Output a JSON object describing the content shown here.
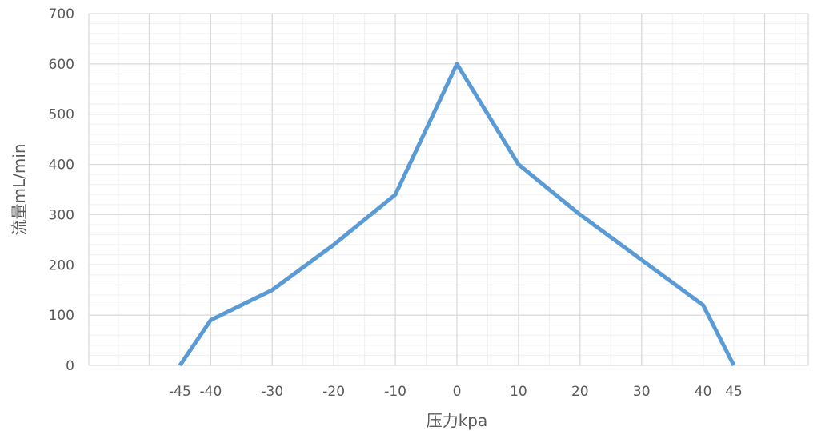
{
  "chart_data": {
    "type": "line",
    "title": "",
    "xlabel": "压力kpa",
    "ylabel": "流量mL/min",
    "x_ticks": [
      "-45",
      "-40",
      "-30",
      "-20",
      "-10",
      "0",
      "10",
      "20",
      "30",
      "40",
      "45"
    ],
    "y_ticks": [
      "0",
      "100",
      "200",
      "300",
      "400",
      "500",
      "600",
      "700"
    ],
    "ylim": [
      0,
      700
    ],
    "grid": true,
    "legend": "none",
    "series": [
      {
        "color": "#5b9bd5",
        "points": [
          {
            "x": "-45",
            "y": 0
          },
          {
            "x": "-40",
            "y": 90
          },
          {
            "x": "-30",
            "y": 150
          },
          {
            "x": "-20",
            "y": 240
          },
          {
            "x": "-10",
            "y": 340
          },
          {
            "x": "0",
            "y": 600
          },
          {
            "x": "10",
            "y": 400
          },
          {
            "x": "20",
            "y": 300
          },
          {
            "x": "30",
            "y": 210
          },
          {
            "x": "40",
            "y": 120
          },
          {
            "x": "45",
            "y": 0
          }
        ]
      }
    ]
  }
}
